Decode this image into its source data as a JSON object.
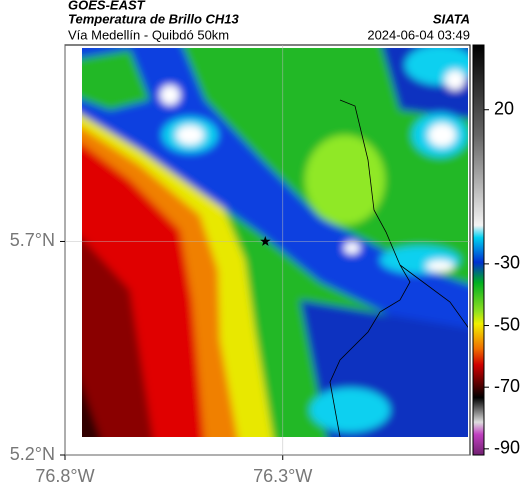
{
  "header": {
    "source": "GOES-EAST",
    "title": "Temperatura de Brillo CH13",
    "subtitle": "Vía Medellín - Quibdó 50km",
    "agency": "SIATA",
    "timestamp": "2024-06-04 03:49"
  },
  "map": {
    "xlim": [
      -76.8,
      -75.87
    ],
    "ylim": [
      5.2,
      6.16
    ],
    "xticks": [
      {
        "value": -76.8,
        "label": "76.8°W"
      },
      {
        "value": -76.3,
        "label": "76.3°W"
      }
    ],
    "yticks": [
      {
        "value": 5.2,
        "label": "5.2°N"
      },
      {
        "value": 5.7,
        "label": "5.7°N"
      }
    ],
    "grid": true,
    "marker": {
      "x": -76.34,
      "y": 5.7
    }
  },
  "colorbar": {
    "lim": [
      -92,
      41
    ],
    "ticks": [
      20,
      -30,
      -50,
      -70,
      -90
    ]
  }
}
